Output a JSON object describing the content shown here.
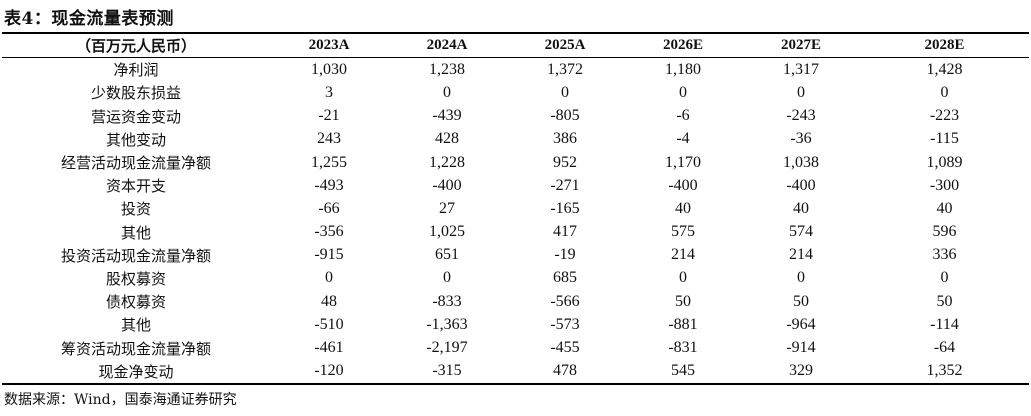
{
  "title": "表4：现金流量表预测",
  "table": {
    "unit_label": "（百万元人民币）",
    "years": [
      "2023A",
      "2024A",
      "2025A",
      "2026E",
      "2027E",
      "2028E"
    ],
    "rows": [
      {
        "label": "净利润",
        "values": [
          "1,030",
          "1,238",
          "1,372",
          "1,180",
          "1,317",
          "1,428"
        ]
      },
      {
        "label": "少数股东损益",
        "values": [
          "3",
          "0",
          "0",
          "0",
          "0",
          "0"
        ]
      },
      {
        "label": "营运资金变动",
        "values": [
          "-21",
          "-439",
          "-805",
          "-6",
          "-243",
          "-223"
        ]
      },
      {
        "label": "其他变动",
        "values": [
          "243",
          "428",
          "386",
          "-4",
          "-36",
          "-115"
        ]
      },
      {
        "label": "经营活动现金流量净额",
        "values": [
          "1,255",
          "1,228",
          "952",
          "1,170",
          "1,038",
          "1,089"
        ]
      },
      {
        "label": "资本开支",
        "values": [
          "-493",
          "-400",
          "-271",
          "-400",
          "-400",
          "-300"
        ]
      },
      {
        "label": "投资",
        "values": [
          "-66",
          "27",
          "-165",
          "40",
          "40",
          "40"
        ]
      },
      {
        "label": "其他",
        "values": [
          "-356",
          "1,025",
          "417",
          "575",
          "574",
          "596"
        ]
      },
      {
        "label": "投资活动现金流量净额",
        "values": [
          "-915",
          "651",
          "-19",
          "214",
          "214",
          "336"
        ]
      },
      {
        "label": "股权募资",
        "values": [
          "0",
          "0",
          "685",
          "0",
          "0",
          "0"
        ]
      },
      {
        "label": "债权募资",
        "values": [
          "48",
          "-833",
          "-566",
          "50",
          "50",
          "50"
        ]
      },
      {
        "label": "其他",
        "values": [
          "-510",
          "-1,363",
          "-573",
          "-881",
          "-964",
          "-114"
        ]
      },
      {
        "label": "筹资活动现金流量净额",
        "values": [
          "-461",
          "-2,197",
          "-455",
          "-831",
          "-914",
          "-64"
        ]
      },
      {
        "label": "现金净变动",
        "values": [
          "-120",
          "-315",
          "478",
          "545",
          "329",
          "1,352"
        ]
      }
    ]
  },
  "source": "数据来源：Wind，国泰海通证券研究"
}
